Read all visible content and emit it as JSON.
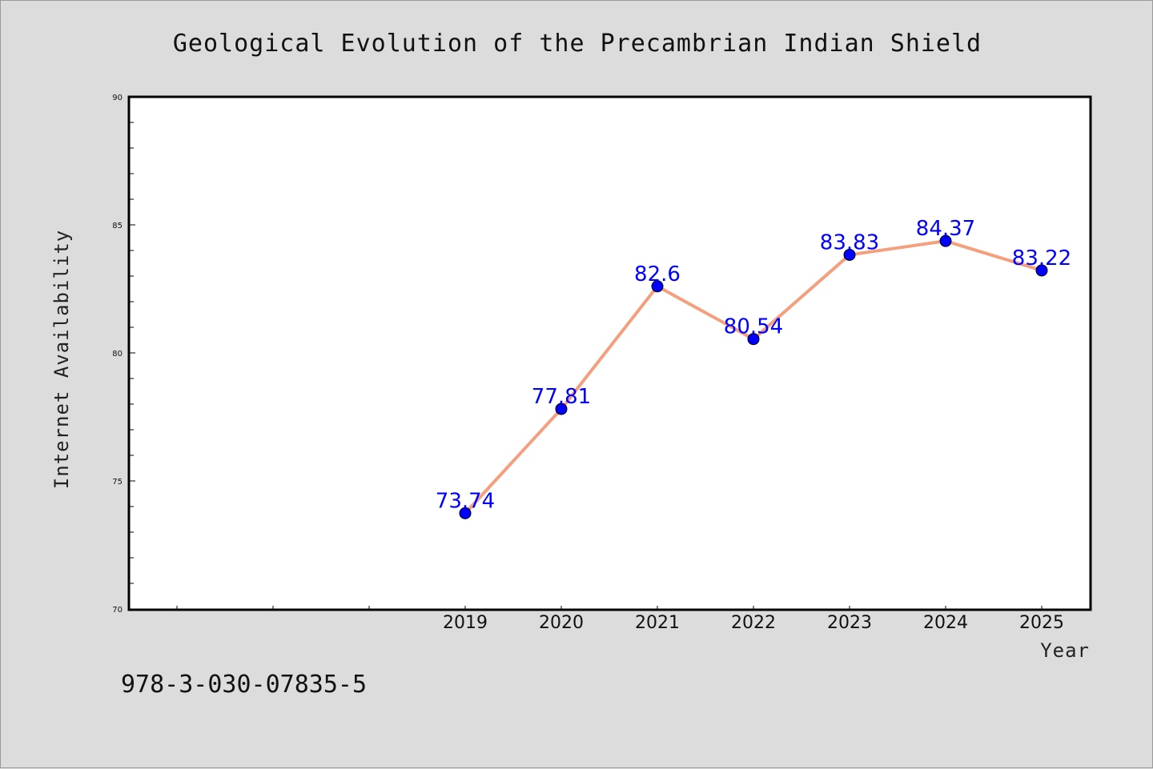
{
  "chart_data": {
    "type": "line",
    "title": "Geological Evolution of the Precambrian Indian Shield",
    "xlabel": "Year",
    "ylabel": "Internet Availability",
    "categories": [
      "2019",
      "2020",
      "2021",
      "2022",
      "2023",
      "2024",
      "2025"
    ],
    "series": [
      {
        "values": [
          73.74,
          77.81,
          82.6,
          80.54,
          83.83,
          84.37,
          83.22
        ],
        "data_labels": [
          "73.74",
          "77.81",
          "82.6",
          "80.54",
          "83.83",
          "84.37",
          "83.22"
        ],
        "line_color": "#f4a07e",
        "marker_color": "#0000ff"
      }
    ],
    "ylim": [
      70,
      90
    ],
    "yticks": [
      "70",
      "75",
      "80",
      "85",
      "90"
    ],
    "grid": false,
    "legend": "none"
  },
  "footer_note": "978-3-030-07835-5",
  "colors": {
    "background": "#dcdcdc",
    "plot_background": "#ffffff",
    "label_color": "#0000ff"
  }
}
